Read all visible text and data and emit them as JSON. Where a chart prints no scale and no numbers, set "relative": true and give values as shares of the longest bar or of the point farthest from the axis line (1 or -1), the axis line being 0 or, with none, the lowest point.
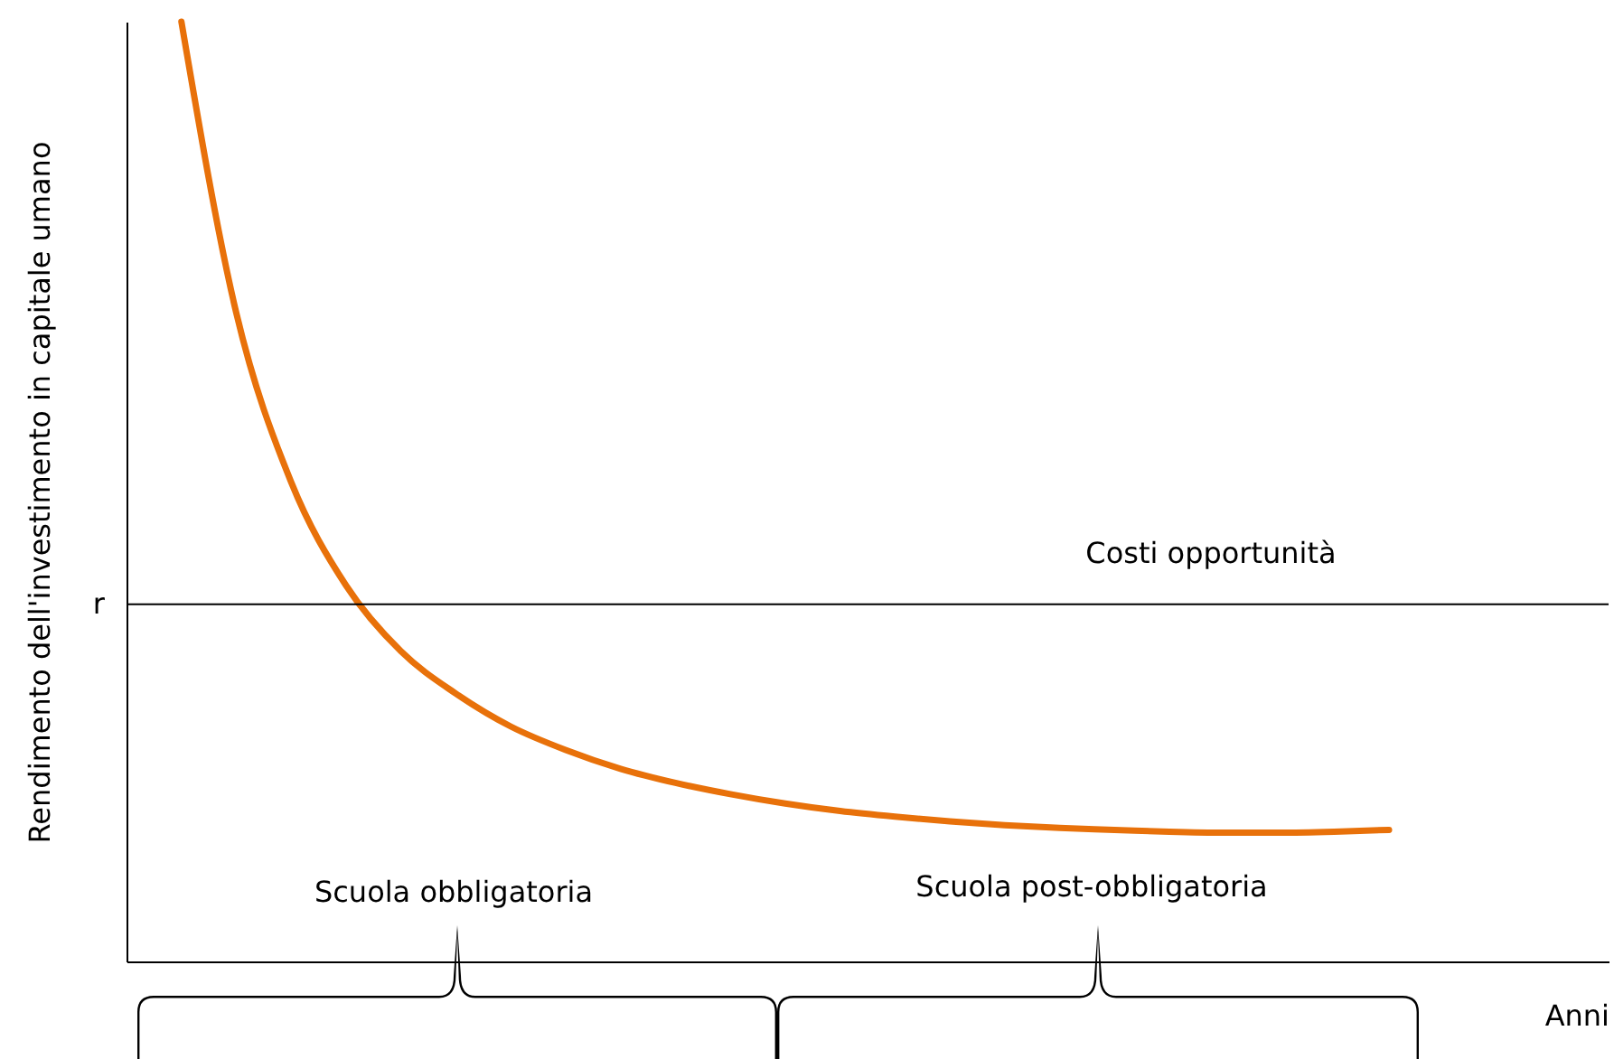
{
  "chart_data": {
    "type": "line",
    "relative": true,
    "xlabel": "Anni",
    "ylabel": "Rendimento dell'investimento in capitale umano",
    "categories": [
      null,
      null,
      null,
      null,
      null,
      null,
      null,
      null,
      null,
      null,
      null,
      null,
      null,
      null,
      null,
      null,
      null,
      null,
      null,
      null,
      null,
      null,
      null,
      null,
      null,
      null,
      null,
      null
    ],
    "series": [
      {
        "color": "#e8710a",
        "values": [
          null,
          1.0,
          0.69,
          0.51,
          0.4,
          0.33,
          0.285,
          0.25,
          0.225,
          0.205,
          0.19,
          0.178,
          0.168,
          0.16,
          0.154,
          0.149,
          0.145,
          0.142,
          0.14,
          0.138,
          0.137,
          0.137,
          0.138,
          0.14,
          null,
          null,
          null,
          null
        ]
      }
    ],
    "ref_lines": [
      {
        "axis": "y",
        "value": 0.38,
        "label": "r",
        "color": "#000000"
      }
    ],
    "annotations": [
      {
        "text": "Costi opportunità",
        "y": 0.38
      },
      "Scuola obbligatoria",
      "Scuola post-obbligatoria"
    ],
    "grid": false,
    "legend": false
  }
}
